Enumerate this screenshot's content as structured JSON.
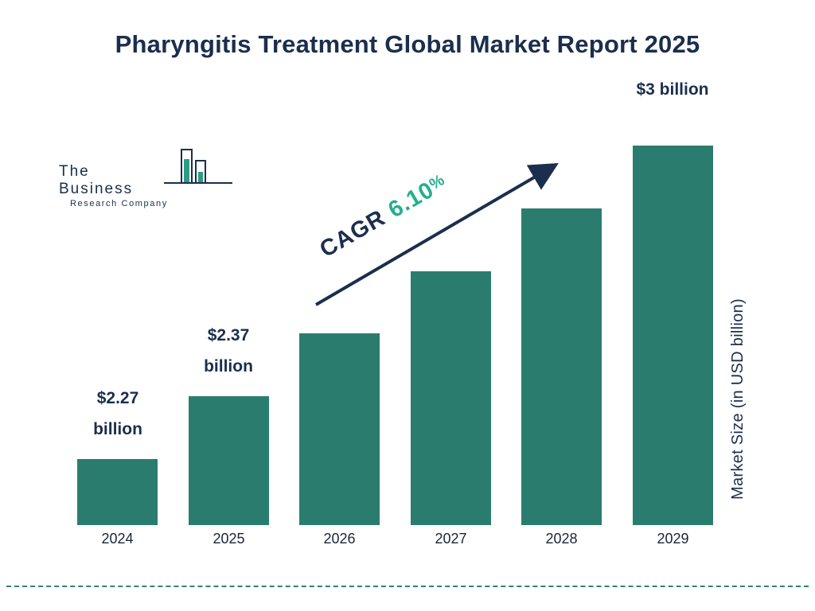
{
  "title": "Pharyngitis Treatment Global Market Report 2025",
  "logo": {
    "name_line": "The Business",
    "subtitle_line": "Research Company"
  },
  "cagr": {
    "label": "CAGR",
    "value": "6.10",
    "percent_sign": "%"
  },
  "right_axis_label": "Market Size (in USD billion)",
  "colors": {
    "bar": "#2a7d6e",
    "navy": "#1b2e4d",
    "teal_accent": "#23af8e",
    "dashed_line": "#2e8476"
  },
  "chart_data": {
    "type": "bar",
    "title": "Pharyngitis Treatment Global Market Report 2025",
    "categories": [
      "2024",
      "2025",
      "2026",
      "2027",
      "2028",
      "2029"
    ],
    "values": [
      2.27,
      2.37,
      2.51,
      2.67,
      2.83,
      3.0
    ],
    "unit": "USD billion",
    "ylabel": "Market Size (in USD billion)",
    "xlabel": "",
    "grid": false,
    "legend": false,
    "cagr_percent": 6.1,
    "value_labels": [
      {
        "index": 0,
        "lines": [
          "$2.27",
          "billion"
        ]
      },
      {
        "index": 1,
        "lines": [
          "$2.37",
          "billion"
        ]
      },
      {
        "index": 5,
        "lines": [
          "$3 billion"
        ]
      }
    ]
  }
}
